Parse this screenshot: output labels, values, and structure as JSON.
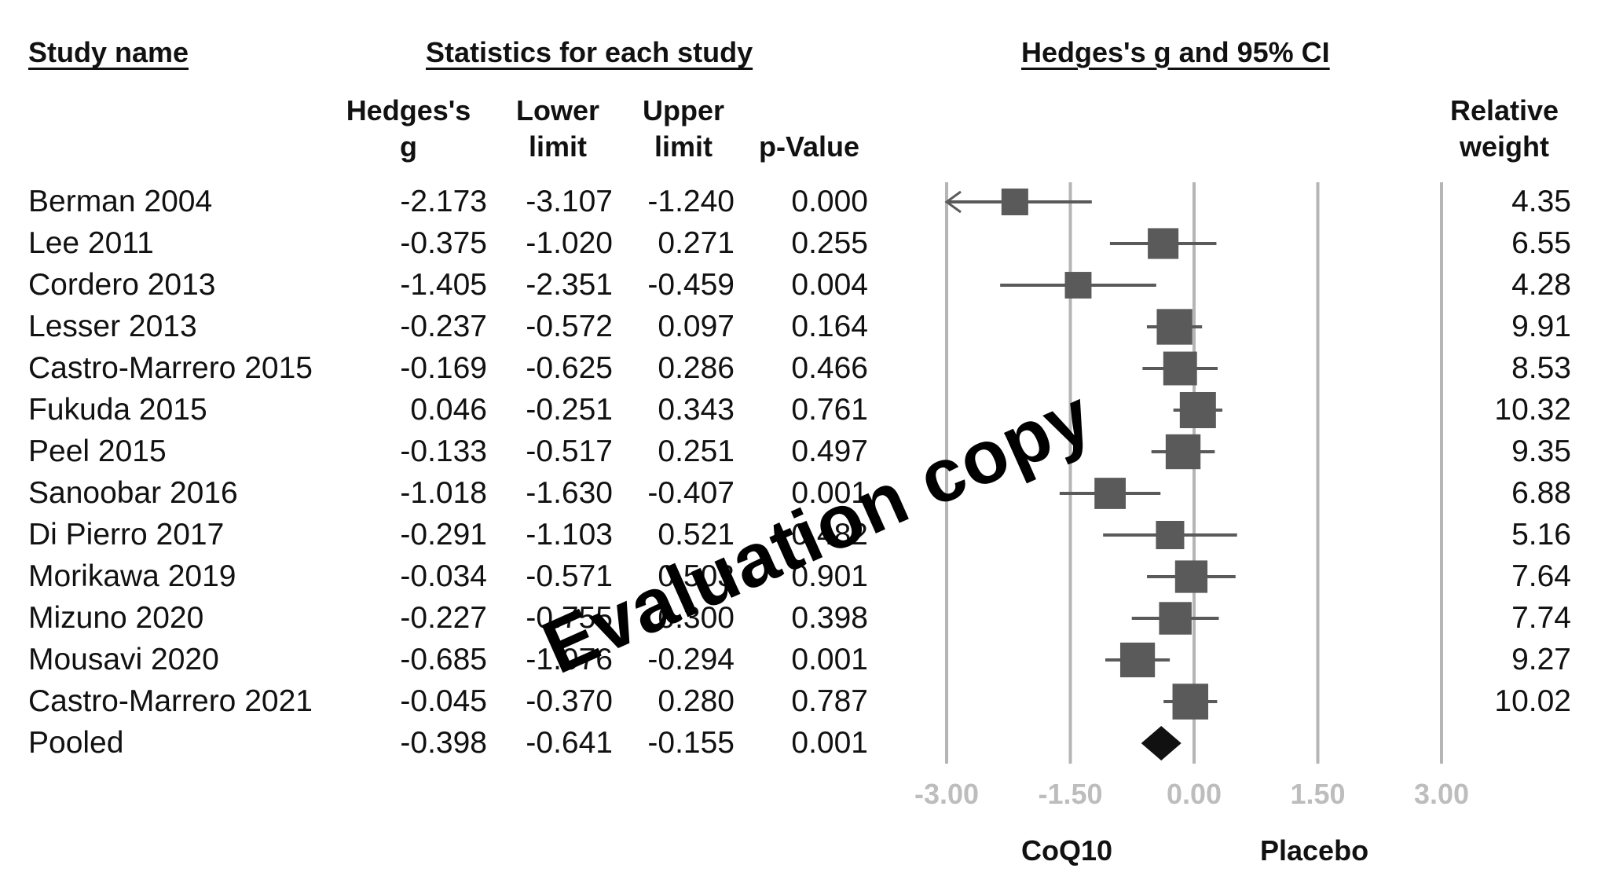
{
  "headers": {
    "study_name": "Study name",
    "statistics": "Statistics for each study",
    "forest": "Hedges's g and 95% CI"
  },
  "columns": {
    "g": "Hedges's\ng",
    "lower": "Lower\nlimit",
    "upper": "Upper\nlimit",
    "p": "p-Value",
    "weight": "Relative\nweight"
  },
  "rows": [
    {
      "study": "Berman 2004",
      "g": "-2.173",
      "lower": "-3.107",
      "upper": "-1.240",
      "p": "0.000",
      "weight": "4.35"
    },
    {
      "study": "Lee 2011",
      "g": "-0.375",
      "lower": "-1.020",
      "upper": "0.271",
      "p": "0.255",
      "weight": "6.55"
    },
    {
      "study": "Cordero 2013",
      "g": "-1.405",
      "lower": "-2.351",
      "upper": "-0.459",
      "p": "0.004",
      "weight": "4.28"
    },
    {
      "study": "Lesser 2013",
      "g": "-0.237",
      "lower": "-0.572",
      "upper": "0.097",
      "p": "0.164",
      "weight": "9.91"
    },
    {
      "study": "Castro-Marrero 2015",
      "g": "-0.169",
      "lower": "-0.625",
      "upper": "0.286",
      "p": "0.466",
      "weight": "8.53"
    },
    {
      "study": "Fukuda 2015",
      "g": "0.046",
      "lower": "-0.251",
      "upper": "0.343",
      "p": "0.761",
      "weight": "10.32"
    },
    {
      "study": "Peel 2015",
      "g": "-0.133",
      "lower": "-0.517",
      "upper": "0.251",
      "p": "0.497",
      "weight": "9.35"
    },
    {
      "study": "Sanoobar 2016",
      "g": "-1.018",
      "lower": "-1.630",
      "upper": "-0.407",
      "p": "0.001",
      "weight": "6.88"
    },
    {
      "study": "Di Pierro 2017",
      "g": "-0.291",
      "lower": "-1.103",
      "upper": "0.521",
      "p": "0.482",
      "weight": "5.16"
    },
    {
      "study": "Morikawa 2019",
      "g": "-0.034",
      "lower": "-0.571",
      "upper": "0.503",
      "p": "0.901",
      "weight": "7.64"
    },
    {
      "study": "Mizuno 2020",
      "g": "-0.227",
      "lower": "-0.755",
      "upper": "0.300",
      "p": "0.398",
      "weight": "7.74"
    },
    {
      "study": "Mousavi 2020",
      "g": "-0.685",
      "lower": "-1.076",
      "upper": "-0.294",
      "p": "0.001",
      "weight": "9.27"
    },
    {
      "study": "Castro-Marrero 2021",
      "g": "-0.045",
      "lower": "-0.370",
      "upper": "0.280",
      "p": "0.787",
      "weight": "10.02"
    },
    {
      "study": "Pooled",
      "g": "-0.398",
      "lower": "-0.641",
      "upper": "-0.155",
      "p": "0.001",
      "weight": ""
    }
  ],
  "axis": {
    "ticks": [
      "-3.00",
      "-1.50",
      "0.00",
      "1.50",
      "3.00"
    ],
    "left_label": "CoQ10",
    "right_label": "Placebo"
  },
  "watermark": "Evaluation copy",
  "chart_data": {
    "type": "forest",
    "xlim": [
      -3.0,
      3.0
    ],
    "xticks": [
      -3.0,
      -1.5,
      0.0,
      1.5,
      3.0
    ],
    "studies": [
      {
        "name": "Berman 2004",
        "g": -2.173,
        "lower": -3.107,
        "upper": -1.24,
        "weight": 4.35
      },
      {
        "name": "Lee 2011",
        "g": -0.375,
        "lower": -1.02,
        "upper": 0.271,
        "weight": 6.55
      },
      {
        "name": "Cordero 2013",
        "g": -1.405,
        "lower": -2.351,
        "upper": -0.459,
        "weight": 4.28
      },
      {
        "name": "Lesser 2013",
        "g": -0.237,
        "lower": -0.572,
        "upper": 0.097,
        "weight": 9.91
      },
      {
        "name": "Castro-Marrero 2015",
        "g": -0.169,
        "lower": -0.625,
        "upper": 0.286,
        "weight": 8.53
      },
      {
        "name": "Fukuda 2015",
        "g": 0.046,
        "lower": -0.251,
        "upper": 0.343,
        "weight": 10.32
      },
      {
        "name": "Peel 2015",
        "g": -0.133,
        "lower": -0.517,
        "upper": 0.251,
        "weight": 9.35
      },
      {
        "name": "Sanoobar 2016",
        "g": -1.018,
        "lower": -1.63,
        "upper": -0.407,
        "weight": 6.88
      },
      {
        "name": "Di Pierro 2017",
        "g": -0.291,
        "lower": -1.103,
        "upper": 0.521,
        "weight": 5.16
      },
      {
        "name": "Morikawa 2019",
        "g": -0.034,
        "lower": -0.571,
        "upper": 0.503,
        "weight": 7.64
      },
      {
        "name": "Mizuno 2020",
        "g": -0.227,
        "lower": -0.755,
        "upper": 0.3,
        "weight": 7.74
      },
      {
        "name": "Mousavi 2020",
        "g": -0.685,
        "lower": -1.076,
        "upper": -0.294,
        "weight": 9.27
      },
      {
        "name": "Castro-Marrero 2021",
        "g": -0.045,
        "lower": -0.37,
        "upper": 0.28,
        "weight": 10.02
      }
    ],
    "pooled": {
      "g": -0.398,
      "lower": -0.641,
      "upper": -0.155
    },
    "colors": {
      "marker": "#5a5a5a",
      "diamond": "#111111",
      "gridline": "#b5b5b5"
    }
  }
}
